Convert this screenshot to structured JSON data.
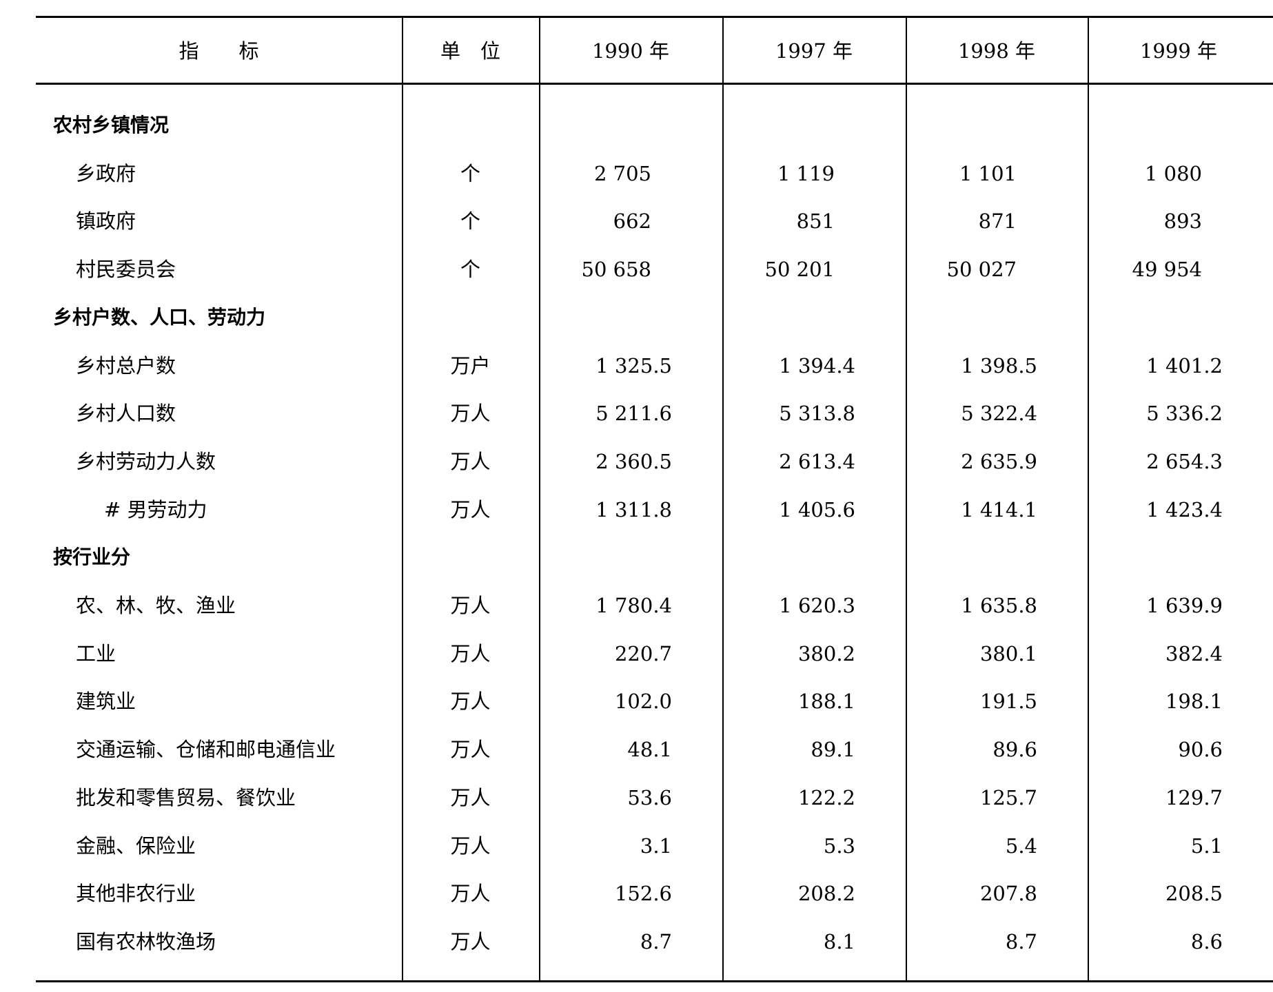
{
  "header": {
    "indicator": "指　　标",
    "unit": "单　位",
    "years": [
      "1990 年",
      "1997 年",
      "1998 年",
      "1999 年"
    ]
  },
  "rows": [
    {
      "label": "农村乡镇情况",
      "level": 0,
      "unit": "",
      "values": [
        "",
        "",
        "",
        ""
      ]
    },
    {
      "label": "乡政府",
      "level": 1,
      "unit": "个",
      "values": [
        "2 705",
        "1 119",
        "1 101",
        "1 080"
      ]
    },
    {
      "label": "镇政府",
      "level": 1,
      "unit": "个",
      "values": [
        "662",
        "851",
        "871",
        "893"
      ]
    },
    {
      "label": "村民委员会",
      "level": 1,
      "unit": "个",
      "values": [
        "50 658",
        "50 201",
        "50 027",
        "49 954"
      ]
    },
    {
      "label": "乡村户数、人口、劳动力",
      "level": 0,
      "unit": "",
      "values": [
        "",
        "",
        "",
        ""
      ]
    },
    {
      "label": "乡村总户数",
      "level": 1,
      "unit": "万户",
      "values": [
        "1 325.5",
        "1 394.4",
        "1 398.5",
        "1 401.2"
      ]
    },
    {
      "label": "乡村人口数",
      "level": 1,
      "unit": "万人",
      "values": [
        "5 211.6",
        "5 313.8",
        "5 322.4",
        "5 336.2"
      ]
    },
    {
      "label": "乡村劳动力人数",
      "level": 1,
      "unit": "万人",
      "values": [
        "2 360.5",
        "2 613.4",
        "2 635.9",
        "2 654.3"
      ]
    },
    {
      "label": "# 男劳动力",
      "level": 2,
      "unit": "万人",
      "values": [
        "1 311.8",
        "1 405.6",
        "1 414.1",
        "1 423.4"
      ]
    },
    {
      "label": "按行业分",
      "level": 0,
      "unit": "",
      "values": [
        "",
        "",
        "",
        ""
      ]
    },
    {
      "label": "农、林、牧、渔业",
      "level": 1,
      "unit": "万人",
      "values": [
        "1 780.4",
        "1 620.3",
        "1 635.8",
        "1 639.9"
      ]
    },
    {
      "label": "工业",
      "level": 1,
      "unit": "万人",
      "values": [
        "220.7",
        "380.2",
        "380.1",
        "382.4"
      ]
    },
    {
      "label": "建筑业",
      "level": 1,
      "unit": "万人",
      "values": [
        "102.0",
        "188.1",
        "191.5",
        "198.1"
      ]
    },
    {
      "label": "交通运输、仓储和邮电通信业",
      "level": 1,
      "unit": "万人",
      "values": [
        "48.1",
        "89.1",
        "89.6",
        "90.6"
      ]
    },
    {
      "label": "批发和零售贸易、餐饮业",
      "level": 1,
      "unit": "万人",
      "values": [
        "53.6",
        "122.2",
        "125.7",
        "129.7"
      ]
    },
    {
      "label": "金融、保险业",
      "level": 1,
      "unit": "万人",
      "values": [
        "3.1",
        "5.3",
        "5.4",
        "5.1"
      ]
    },
    {
      "label": "其他非农行业",
      "level": 1,
      "unit": "万人",
      "values": [
        "152.6",
        "208.2",
        "207.8",
        "208.5"
      ]
    },
    {
      "label": "国有农林牧渔场",
      "level": 1,
      "unit": "万人",
      "values": [
        "8.7",
        "8.1",
        "8.7",
        "8.6"
      ]
    }
  ]
}
